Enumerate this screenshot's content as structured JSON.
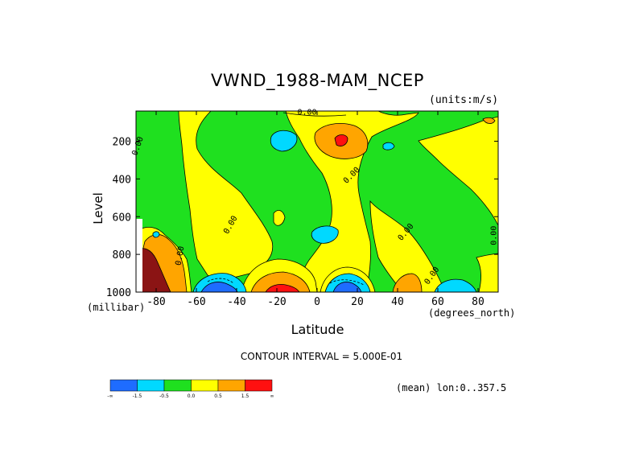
{
  "chart_data": {
    "type": "heatmap",
    "title": "VWND_1988-MAM_NCEP",
    "units_label": "(units:m/s)",
    "xlabel": "Latitude",
    "x_unit_label": "(degrees_north)",
    "ylabel": "Level",
    "y_unit_label": "(millibar)",
    "xlim": [
      -90,
      90
    ],
    "ylim": [
      1000,
      0
    ],
    "x_ticks": [
      "-80",
      "-60",
      "-40",
      "-20",
      "0",
      "20",
      "40",
      "60",
      "80"
    ],
    "x_tick_values": [
      -80,
      -60,
      -40,
      -20,
      0,
      20,
      40,
      60,
      80
    ],
    "y_ticks": [
      "200",
      "400",
      "600",
      "800",
      "1000"
    ],
    "y_tick_values": [
      200,
      400,
      600,
      800,
      1000
    ],
    "contour_interval_text": "CONTOUR INTERVAL = 5.000E-01",
    "footer_text": "(mean) lon:0..357.5",
    "colorbar": {
      "colors": [
        "#1e6cff",
        "#00d9ff",
        "#1fe01f",
        "#ffff00",
        "#ffa500",
        "#ff1010"
      ],
      "labels": [
        "-∞",
        "-1.5",
        "-0.5",
        "0.0",
        "0.5",
        "1.5",
        "∞"
      ]
    },
    "zero_contour_labels": [
      "0.00",
      "0.00",
      "0.00",
      "0.00",
      "0.00",
      "0.00",
      "0.00",
      "0.00"
    ],
    "features": [
      {
        "lat": -84,
        "level": 930,
        "value": 3.0,
        "color": "#8b1414"
      },
      {
        "lat": -80,
        "level": 820,
        "value": 1.2,
        "color": "#ffa500"
      },
      {
        "lat": -55,
        "level": 985,
        "value": -1.8,
        "color": "#1e6cff"
      },
      {
        "lat": -20,
        "level": 980,
        "value": 2.0,
        "color": "#ff1010"
      },
      {
        "lat": 13,
        "level": 985,
        "value": -1.8,
        "color": "#1e6cff"
      },
      {
        "lat": 12,
        "level": 175,
        "value": 2.0,
        "color": "#ff1010"
      },
      {
        "lat": -22,
        "level": 175,
        "value": -1.0,
        "color": "#00d9ff"
      },
      {
        "lat": 5,
        "level": 690,
        "value": -1.0,
        "color": "#00d9ff"
      },
      {
        "lat": 48,
        "level": 950,
        "value": 1.0,
        "color": "#ffa500"
      },
      {
        "lat": 68,
        "level": 970,
        "value": -1.0,
        "color": "#00d9ff"
      }
    ]
  }
}
